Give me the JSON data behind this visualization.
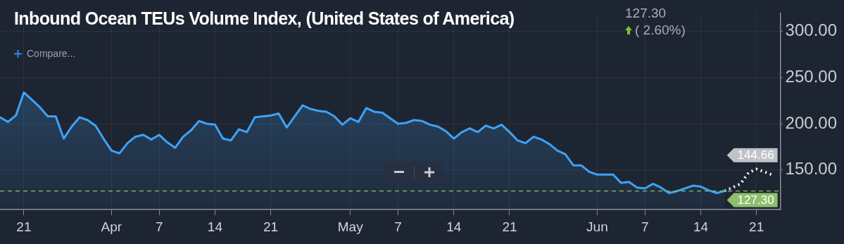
{
  "chart_data": {
    "type": "area",
    "title": "Inbound Ocean TEUs Volume Index, (United States of America)",
    "annotations": [
      "127.30",
      "( 2.60%)",
      "Compare..."
    ],
    "series": [
      {
        "type": "area",
        "color": "#3fa2f5",
        "line_style": "solid",
        "x": [
          "--03-18",
          "--03-19",
          "--03-20",
          "--03-21",
          "--03-22",
          "--03-23",
          "--03-24",
          "--03-25",
          "--03-26",
          "--03-27",
          "--03-28",
          "--03-29",
          "--03-30",
          "--03-31",
          "--04-01",
          "--04-02",
          "--04-03",
          "--04-04",
          "--04-05",
          "--04-06",
          "--04-07",
          "--04-08",
          "--04-09",
          "--04-10",
          "--04-11",
          "--04-12",
          "--04-13",
          "--04-14",
          "--04-15",
          "--04-16",
          "--04-17",
          "--04-18",
          "--04-19",
          "--04-20",
          "--04-21",
          "--04-22",
          "--04-23",
          "--04-24",
          "--04-25",
          "--04-26",
          "--04-27",
          "--04-28",
          "--04-29",
          "--04-30",
          "--05-01",
          "--05-02",
          "--05-03",
          "--05-04",
          "--05-05",
          "--05-06",
          "--05-07",
          "--05-08",
          "--05-09",
          "--05-10",
          "--05-11",
          "--05-12",
          "--05-13",
          "--05-14",
          "--05-15",
          "--05-16",
          "--05-17",
          "--05-18",
          "--05-19",
          "--05-20",
          "--05-21",
          "--05-22",
          "--05-23",
          "--05-24",
          "--05-25",
          "--05-26",
          "--05-27",
          "--05-28",
          "--05-29",
          "--05-30",
          "--05-31",
          "--06-01",
          "--06-02",
          "--06-03",
          "--06-04",
          "--06-05",
          "--06-06",
          "--06-07",
          "--06-08",
          "--06-09",
          "--06-10",
          "--06-11",
          "--06-12",
          "--06-13",
          "--06-14",
          "--06-15",
          "--06-16",
          "--06-17"
        ],
        "values": [
          207,
          202,
          209,
          234,
          226,
          218,
          208,
          208,
          184,
          197,
          207,
          204,
          198,
          184,
          171,
          168,
          179,
          186,
          188,
          183,
          188,
          180,
          174,
          186,
          193,
          203,
          200,
          199,
          184,
          182,
          194,
          191,
          207,
          208,
          209,
          211,
          196,
          208,
          220,
          216,
          214,
          213,
          208,
          199,
          206,
          202,
          217,
          213,
          212,
          206,
          200,
          201,
          204,
          203,
          199,
          197,
          192,
          184,
          191,
          195,
          191,
          198,
          195,
          199,
          191,
          182,
          179,
          186,
          183,
          178,
          171,
          167,
          155,
          155,
          148,
          145,
          145,
          145,
          136,
          137,
          131,
          130,
          135,
          131,
          125,
          127,
          130,
          133,
          132,
          128,
          125,
          127.3
        ]
      },
      {
        "type": "line",
        "color": "#ffffff",
        "line_style": "dotted",
        "x": [
          "--06-17",
          "--06-18",
          "--06-19",
          "--06-20",
          "--06-21",
          "--06-22",
          "--06-23"
        ],
        "values": [
          127.3,
          131,
          135,
          147,
          151,
          148,
          144.66
        ],
        "value_labels": [
          null,
          null,
          null,
          null,
          null,
          null,
          "144.66"
        ]
      }
    ],
    "ref_lines": [
      {
        "axis": "y",
        "value": 127.3,
        "label": "127.30",
        "color": "#8cc06a",
        "line_style": "dashed"
      }
    ],
    "xlim": [
      "--03-18",
      "--06-24"
    ],
    "xticks": [
      {
        "value": "--03-21",
        "label": "21"
      },
      {
        "value": "--04-01",
        "label": "Apr"
      },
      {
        "value": "--04-07",
        "label": "7"
      },
      {
        "value": "--04-14",
        "label": "14"
      },
      {
        "value": "--04-21",
        "label": "21"
      },
      {
        "value": "--05-01",
        "label": "May"
      },
      {
        "value": "--05-07",
        "label": "7"
      },
      {
        "value": "--05-14",
        "label": "14"
      },
      {
        "value": "--05-21",
        "label": "21"
      },
      {
        "value": "--06-01",
        "label": "Jun"
      },
      {
        "value": "--06-07",
        "label": "7"
      },
      {
        "value": "--06-14",
        "label": "14"
      },
      {
        "value": "--06-21",
        "label": "21"
      }
    ],
    "ylim": [
      107,
      320
    ],
    "yticks": [
      {
        "value": 150,
        "label": "150.00"
      },
      {
        "value": 200,
        "label": "200.00"
      },
      {
        "value": 250,
        "label": "250.00"
      },
      {
        "value": 300,
        "label": "300.00"
      }
    ],
    "grid": true,
    "legend": false,
    "marker": "none"
  }
}
